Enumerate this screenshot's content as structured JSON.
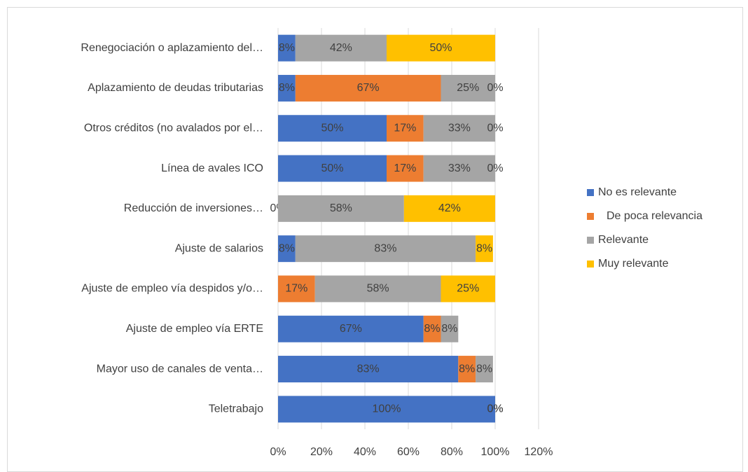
{
  "chart_data": {
    "type": "stacked-barh",
    "categories": [
      "Renegociación o aplazamiento del…",
      "Aplazamiento de deudas tributarias",
      "Otros créditos (no avalados por el…",
      "Línea de avales ICO",
      "Reducción de inversiones…",
      "Ajuste de salarios",
      "Ajuste de empleo vía despidos y/o…",
      "Ajuste de empleo vía ERTE",
      "Mayor uso de canales de venta…",
      "Teletrabajo"
    ],
    "series": [
      {
        "name": "No es relevante",
        "color": "#4472c4",
        "values": [
          8,
          8,
          50,
          50,
          0,
          8,
          null,
          67,
          83,
          100
        ],
        "value_labels": [
          "8%",
          "8%",
          "50%",
          "50%",
          "0%",
          "8%",
          null,
          "67%",
          "83%",
          "100%"
        ]
      },
      {
        "name": "De poca relevancia",
        "color": "#ed7d31",
        "values": [
          null,
          67,
          17,
          17,
          null,
          null,
          17,
          8,
          8,
          null
        ],
        "value_labels": [
          null,
          "67%",
          "17%",
          "17%",
          null,
          null,
          "17%",
          "8%",
          "8%",
          null
        ]
      },
      {
        "name": "Relevante",
        "color": "#a5a5a5",
        "values": [
          42,
          25,
          33,
          33,
          58,
          83,
          58,
          8,
          8,
          0
        ],
        "value_labels": [
          "42%",
          "25%",
          "33%",
          "33%",
          "58%",
          "83%",
          "58%",
          "8%",
          "8%",
          "0%"
        ]
      },
      {
        "name": "Muy relevante",
        "color": "#ffc000",
        "values": [
          50,
          0,
          0,
          0,
          42,
          8,
          25,
          null,
          null,
          0
        ],
        "value_labels": [
          "50%",
          "0%",
          "0%",
          "0%",
          "42%",
          "8%",
          "25%",
          null,
          null,
          "0%"
        ]
      }
    ],
    "xlim": [
      0,
      120
    ],
    "xticks": [
      {
        "value": 0,
        "label": "0%"
      },
      {
        "value": 20,
        "label": "20%"
      },
      {
        "value": 40,
        "label": "40%"
      },
      {
        "value": 60,
        "label": "60%"
      },
      {
        "value": 80,
        "label": "80%"
      },
      {
        "value": 100,
        "label": "100%"
      },
      {
        "value": 120,
        "label": "120%"
      }
    ],
    "grid": true,
    "legend": "right"
  }
}
